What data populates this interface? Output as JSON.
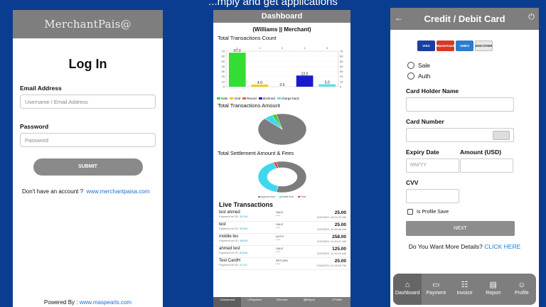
{
  "slide_title": "...mply and get applications",
  "login": {
    "logo": "MerchantPais@",
    "title": "Log In",
    "email_label": "Email Address",
    "email_placeholder": "Username / Email Address",
    "password_label": "Password",
    "password_placeholder": "Password",
    "submit": "SUBMIT",
    "no_account": "Don't have an account ?",
    "signup_link": "www.merchantpaisa.com",
    "powered_by": "Powered By :",
    "powered_link": "www.maspearls.com"
  },
  "dashboard": {
    "title": "Dashboard",
    "merchant": "(Williams || Merchant)",
    "section_count": "Total Transactions Count",
    "section_amount": "Total Transactions Amount",
    "section_settlement": "Total Settlement Amount & Fees",
    "live_title": "Live Transactions",
    "legend": [
      {
        "label": "Sale",
        "color": "#33dd33"
      },
      {
        "label": "Void",
        "color": "#f5c518"
      },
      {
        "label": "Reund",
        "color": "#e65a4a"
      },
      {
        "label": "declined",
        "color": "#1a1acc"
      },
      {
        "label": "charge back",
        "color": "#66ddee"
      }
    ],
    "settlement_legend": [
      {
        "label": "Approve Amt",
        "color": "#7c7c7c"
      },
      {
        "label": "Settle Amt",
        "color": "#3fd7ee"
      },
      {
        "label": "Fees",
        "color": "#e04040"
      }
    ],
    "transactions": [
      {
        "name": "test ahmed",
        "ref_label": "Payment ref ID:",
        "ref": "35784",
        "type": "SALE",
        "card": "****",
        "amount": "25.00",
        "date": "2/20/2021 10:24:32 AM"
      },
      {
        "name": "test",
        "ref_label": "Payment ref ID:",
        "ref": "92994",
        "type": "SALE",
        "card": "****",
        "amount": "25.00",
        "date": "2/20/2021 11:48:46 AM"
      },
      {
        "name": "mobile tes",
        "ref_label": "Payment ref ID:",
        "ref": "39849",
        "type": "AUTH",
        "card": "****",
        "amount": "258.00",
        "date": "2/20/2021 11:44:07 AM"
      },
      {
        "name": "ahmed test",
        "ref_label": "Payment ref ID:",
        "ref": "83336",
        "type": "SALE",
        "card": "****",
        "amount": "125.00",
        "date": "2/20/2021 11:16:23 AM"
      },
      {
        "name": "Test CardH",
        "ref_label": "Payment ref ID:",
        "ref": "47147",
        "type": "RETURN",
        "card": "****",
        "amount": "25.00",
        "date": "2/18/2021 12:13:56 PM"
      }
    ],
    "nav": [
      "Dashboard",
      "Payment",
      "Invoice",
      "Report",
      "Profile"
    ]
  },
  "chart_data": [
    {
      "type": "bar",
      "title": "Total Transactions Count",
      "categories": [
        "Sale",
        "Void",
        "Reund",
        "declined",
        "charge back"
      ],
      "values": [
        67.0,
        4.0,
        0.0,
        22.0,
        5.0
      ],
      "x_ticks": [
        "1",
        "2",
        "3",
        "4",
        "5"
      ],
      "ylim": [
        0,
        70
      ],
      "y_ticks": [
        0,
        10,
        20,
        30,
        40,
        50,
        60,
        70
      ],
      "colors": [
        "#33dd33",
        "#f5c518",
        "#e65a4a",
        "#1a1acc",
        "#66ddee"
      ]
    },
    {
      "type": "pie",
      "title": "Total Transactions Amount",
      "values": [
        91,
        6,
        3
      ],
      "colors": [
        "#7c7c7c",
        "#3fd7ee",
        "#44cc44"
      ]
    },
    {
      "type": "pie",
      "title": "Total Settlement Amount & Fees",
      "values": [
        58,
        40,
        2
      ],
      "colors": [
        "#7c7c7c",
        "#3fd7ee",
        "#e04040"
      ]
    }
  ],
  "card_form": {
    "title": "Credit / Debit Card",
    "brands": [
      {
        "name": "VISA",
        "color": "#1a3f9e"
      },
      {
        "name": "MasterCard",
        "color": "#d63a26"
      },
      {
        "name": "AMEX",
        "color": "#2b7bd1"
      },
      {
        "name": "DISCOVER",
        "color": "#e9e9e9"
      }
    ],
    "opt_sale": "Sale",
    "opt_auth": "Auth",
    "holder_label": "Card Holder Name",
    "number_label": "Card Number",
    "expiry_label": "Expiry Date",
    "expiry_placeholder": "MM/YY",
    "amount_label": "Amount (USD)",
    "cvv_label": "CVV",
    "save_label": "Is Profile Save",
    "next": "NEXT",
    "more_text": "Do You Want More Details?",
    "more_link": "CLICK HERE",
    "nav": [
      "Dashboard",
      "Payment",
      "Invoice",
      "Report",
      "Profile"
    ]
  }
}
